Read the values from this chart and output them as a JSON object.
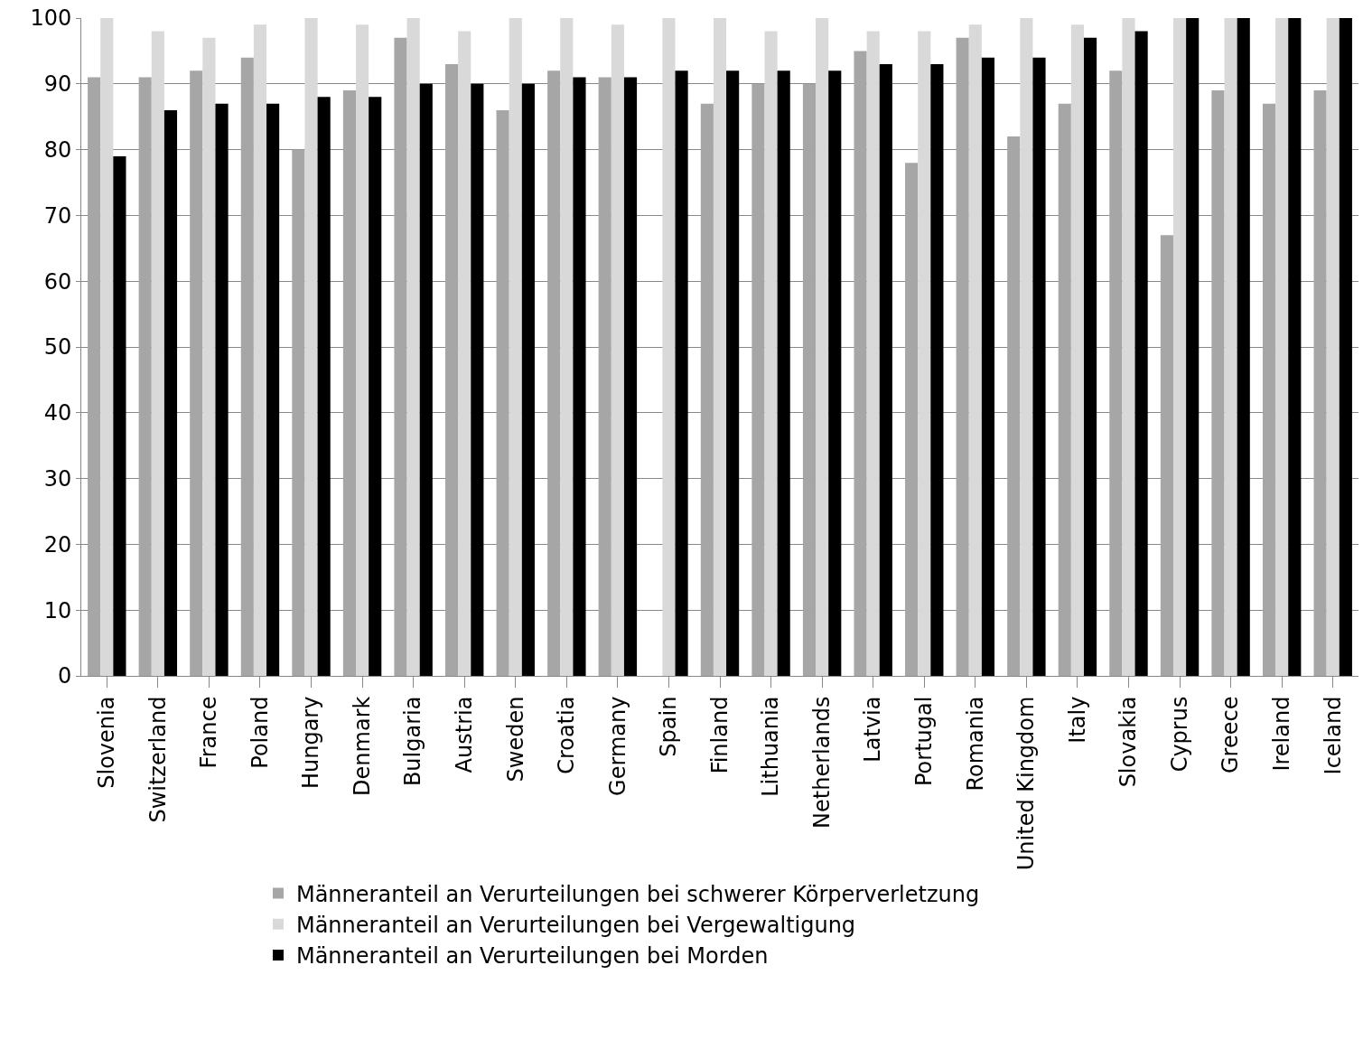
{
  "chart_data": {
    "type": "bar",
    "categories": [
      "Slovenia",
      "Switzerland",
      "France",
      "Poland",
      "Hungary",
      "Denmark",
      "Bulgaria",
      "Austria",
      "Sweden",
      "Croatia",
      "Germany",
      "Spain",
      "Finland",
      "Lithuania",
      "Netherlands",
      "Latvia",
      "Portugal",
      "Romania",
      "United Kingdom",
      "Italy",
      "Slovakia",
      "Cyprus",
      "Greece",
      "Ireland",
      "Iceland"
    ],
    "series": [
      {
        "name": "Männeranteil an Verurteilungen bei schwerer Körperverletzung",
        "color": "#a6a6a6",
        "values": [
          91,
          91,
          92,
          94,
          80,
          89,
          97,
          93,
          86,
          92,
          91,
          null,
          87,
          90,
          90,
          95,
          78,
          97,
          82,
          87,
          92,
          67,
          89,
          87,
          89
        ]
      },
      {
        "name": "Männeranteil an Verurteilungen bei Vergewaltigung",
        "color": "#d9d9d9",
        "values": [
          100,
          98,
          97,
          99,
          100,
          99,
          100,
          98,
          100,
          100,
          99,
          100,
          100,
          98,
          100,
          98,
          98,
          99,
          100,
          99,
          100,
          100,
          100,
          100,
          100
        ]
      },
      {
        "name": "Männeranteil an Verurteilungen bei Morden",
        "color": "#000000",
        "values": [
          79,
          86,
          87,
          87,
          88,
          88,
          90,
          90,
          90,
          91,
          91,
          92,
          92,
          92,
          92,
          93,
          93,
          94,
          94,
          97,
          98,
          100,
          100,
          100,
          100
        ]
      }
    ],
    "ylim": [
      0,
      100
    ],
    "yticks": [
      0,
      10,
      20,
      30,
      40,
      50,
      60,
      70,
      80,
      90,
      100
    ],
    "grid": "y",
    "legend": "bottom"
  }
}
